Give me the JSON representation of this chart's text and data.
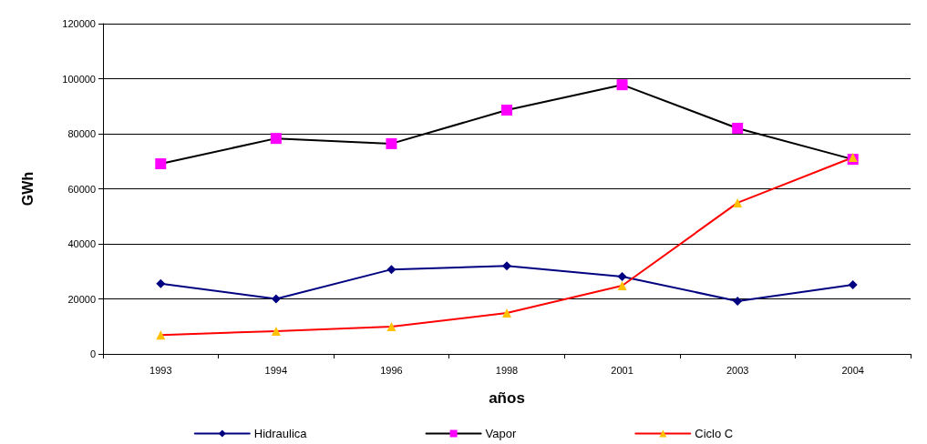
{
  "chart_data": {
    "type": "line",
    "xlabel": "años",
    "ylabel": "GWh",
    "categories": [
      "1993",
      "1994",
      "1996",
      "1998",
      "2001",
      "2003",
      "2004"
    ],
    "series": [
      {
        "name": "Hidraulica",
        "color": "#000080",
        "marker": "diamond",
        "colors": [
          "#000080",
          "#000080",
          "#000080",
          "#000080",
          "#000080",
          "#000080",
          "#000080"
        ],
        "values": [
          25500,
          20000,
          30700,
          32000,
          28100,
          19200,
          25100
        ]
      },
      {
        "name": "Vapor",
        "color": "#000000",
        "marker": "square",
        "colors": [
          "#ff00ff",
          "#ff00ff",
          "#ff00ff",
          "#ff00ff",
          "#ff00ff",
          "#ff00ff",
          "#ff00ff"
        ],
        "values": [
          69100,
          78300,
          76400,
          88600,
          97800,
          82000,
          70700
        ]
      },
      {
        "name": "Ciclo C",
        "color": "#ff0000",
        "marker": "triangle",
        "colors": [
          "#ffc000",
          "#ffc000",
          "#ffc000",
          "#ffc000",
          "#ffc000",
          "#ffc000",
          "#ffc000"
        ],
        "values": [
          6900,
          8300,
          9900,
          14900,
          24800,
          54900,
          71400
        ]
      }
    ],
    "ylim": [
      0,
      120000
    ],
    "yticks": [
      0,
      20000,
      40000,
      60000,
      80000,
      100000,
      120000
    ],
    "grid": "y",
    "legend": "bottom"
  }
}
